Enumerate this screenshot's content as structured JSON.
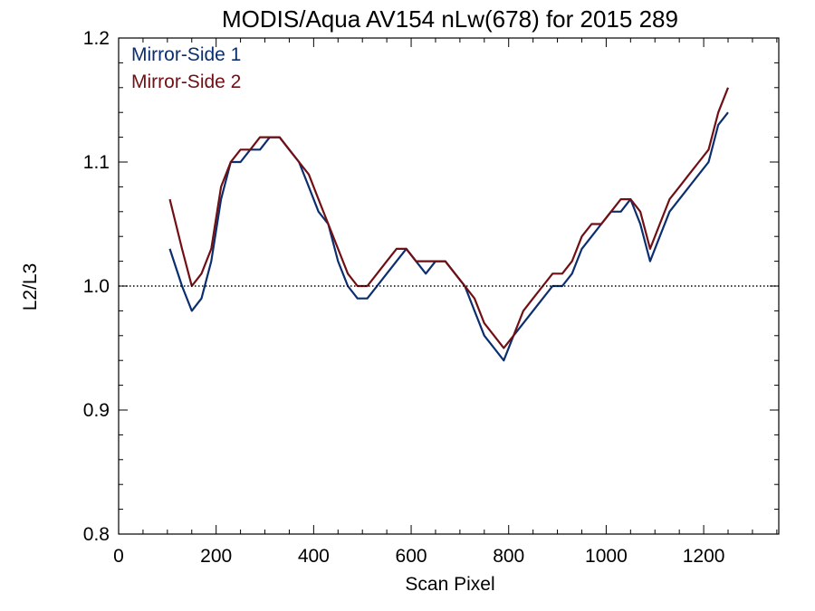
{
  "chart_data": {
    "type": "line",
    "title": "MODIS/Aqua AV154 nLw(678) for 2015 289",
    "xlabel": "Scan Pixel",
    "ylabel": "L2/L3",
    "xlim": [
      0,
      1354
    ],
    "ylim": [
      0.8,
      1.2
    ],
    "xticks": [
      0,
      200,
      400,
      600,
      800,
      1000,
      1200
    ],
    "xtick_labels": [
      "0",
      "200",
      "400",
      "600",
      "800",
      "1000",
      "1200"
    ],
    "yticks": [
      0.8,
      0.9,
      1.0,
      1.1,
      1.2
    ],
    "ytick_labels": [
      "0.8",
      "0.9",
      "1.0",
      "1.1",
      "1.2"
    ],
    "reference_line": {
      "y": 1.0,
      "style": "dotted"
    },
    "legend_position": "top-left",
    "x": [
      105,
      130,
      150,
      170,
      190,
      210,
      230,
      250,
      270,
      290,
      310,
      330,
      350,
      370,
      390,
      410,
      430,
      450,
      470,
      490,
      510,
      530,
      550,
      570,
      590,
      610,
      630,
      650,
      670,
      690,
      710,
      730,
      750,
      770,
      790,
      810,
      830,
      850,
      870,
      890,
      910,
      930,
      950,
      970,
      990,
      1010,
      1030,
      1050,
      1070,
      1090,
      1110,
      1130,
      1150,
      1170,
      1190,
      1210,
      1230,
      1250
    ],
    "series": [
      {
        "name": "Mirror-Side 1",
        "color": "#0b2e6f",
        "values": [
          1.03,
          1.0,
          0.98,
          0.99,
          1.02,
          1.07,
          1.1,
          1.1,
          1.11,
          1.11,
          1.12,
          1.12,
          1.11,
          1.1,
          1.08,
          1.06,
          1.05,
          1.02,
          1.0,
          0.99,
          0.99,
          1.0,
          1.01,
          1.02,
          1.03,
          1.02,
          1.01,
          1.02,
          1.02,
          1.01,
          1.0,
          0.98,
          0.96,
          0.95,
          0.94,
          0.96,
          0.97,
          0.98,
          0.99,
          1.0,
          1.0,
          1.01,
          1.03,
          1.04,
          1.05,
          1.06,
          1.06,
          1.07,
          1.05,
          1.02,
          1.04,
          1.06,
          1.07,
          1.08,
          1.09,
          1.1,
          1.13,
          1.14
        ]
      },
      {
        "name": "Mirror-Side 2",
        "color": "#700f14",
        "values": [
          1.07,
          1.03,
          1.0,
          1.01,
          1.03,
          1.08,
          1.1,
          1.11,
          1.11,
          1.12,
          1.12,
          1.12,
          1.11,
          1.1,
          1.09,
          1.07,
          1.05,
          1.03,
          1.01,
          1.0,
          1.0,
          1.01,
          1.02,
          1.03,
          1.03,
          1.02,
          1.02,
          1.02,
          1.02,
          1.01,
          1.0,
          0.99,
          0.97,
          0.96,
          0.95,
          0.96,
          0.98,
          0.99,
          1.0,
          1.01,
          1.01,
          1.02,
          1.04,
          1.05,
          1.05,
          1.06,
          1.07,
          1.07,
          1.06,
          1.03,
          1.05,
          1.07,
          1.08,
          1.09,
          1.1,
          1.11,
          1.14,
          1.16
        ]
      }
    ]
  }
}
